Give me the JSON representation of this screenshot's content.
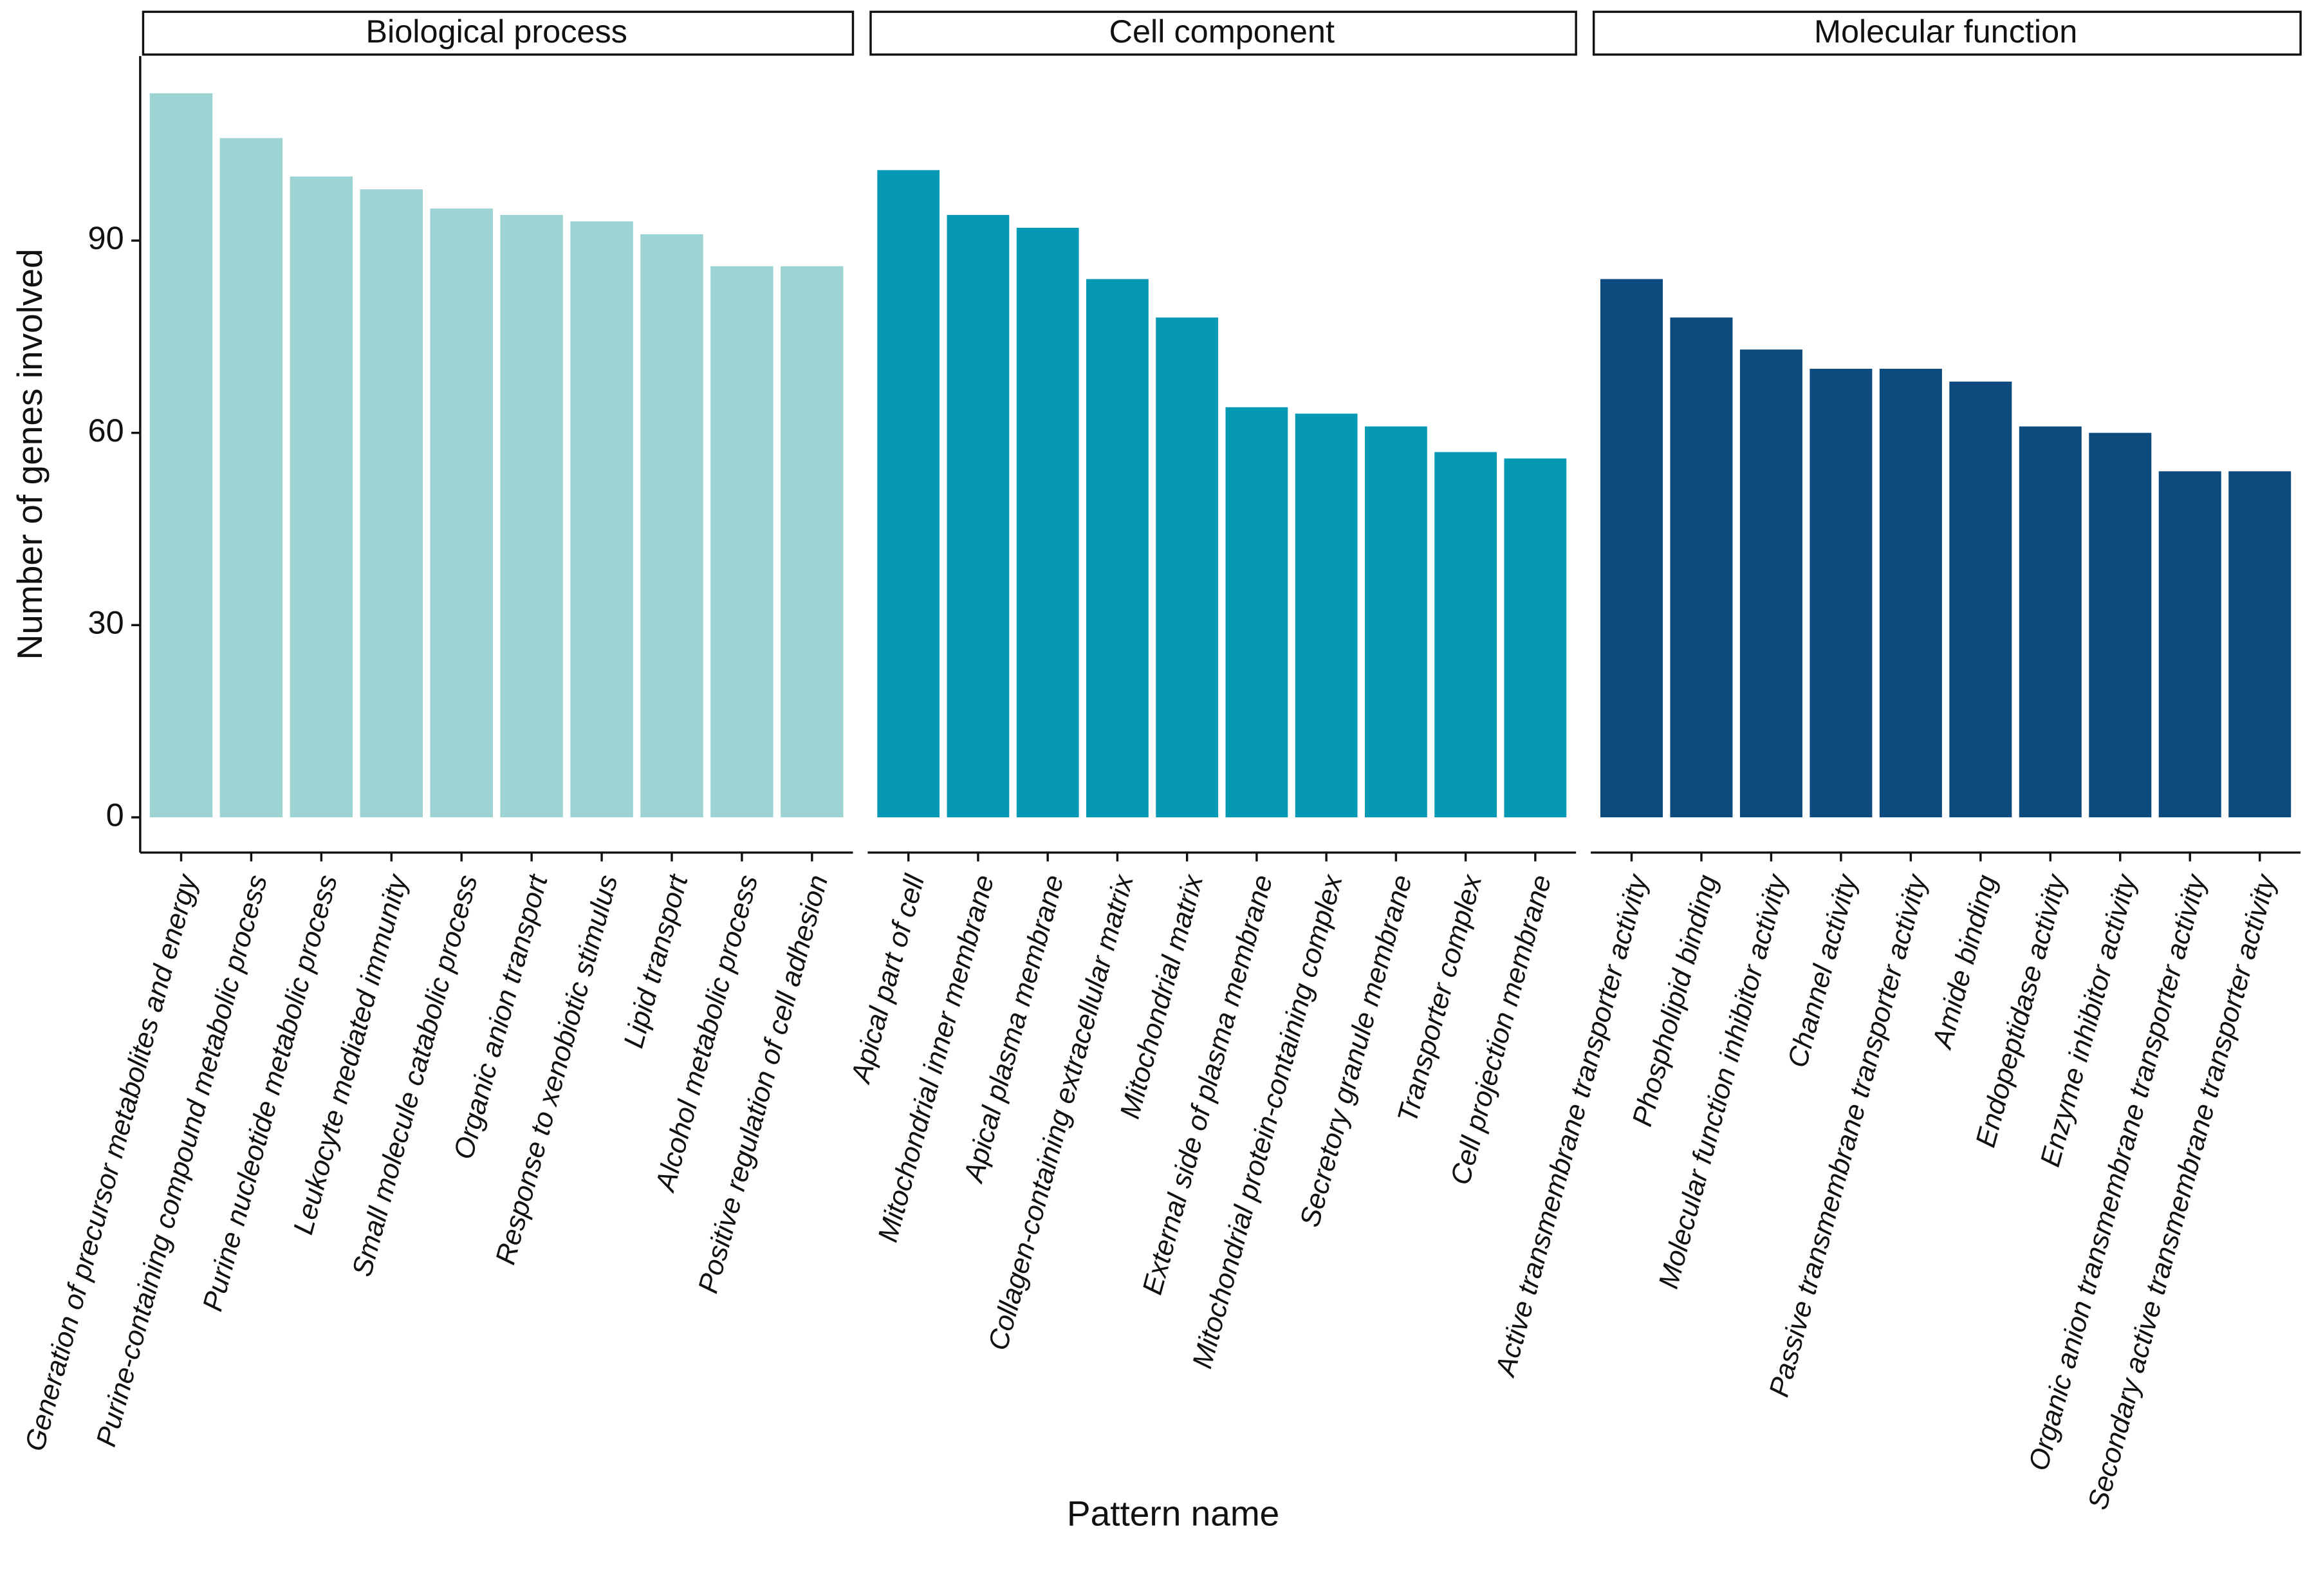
{
  "chart_data": {
    "type": "bar",
    "y_label": "Number of genes involved",
    "x_label": "Pattern name",
    "ylim": [
      -5.5,
      118.8
    ],
    "yticks": [
      0,
      30,
      60,
      90
    ],
    "panels": [
      {
        "title": "Biological process",
        "color": "#9dd3d3",
        "categories": [
          "Generation of precursor metabolites and energy",
          "Purine-containing compound metabolic process",
          "Purine nucleotide metabolic process",
          "Leukocyte mediated immunity",
          "Small molecule catabolic process",
          "Organic anion transport",
          "Response to xenobiotic stimulus",
          "Lipid transport",
          "Alcohol metabolic process",
          "Positive regulation of cell adhesion"
        ],
        "values": [
          113,
          106,
          100,
          98,
          95,
          94,
          93,
          91,
          86,
          86
        ]
      },
      {
        "title": "Cell component",
        "color": "#0599b3",
        "categories": [
          "Apical part of cell",
          "Mitochondrial inner membrane",
          "Apical plasma membrane",
          "Collagen-containing extracellular matrix",
          "Mitochondrial matrix",
          "External side of plasma membrane",
          "Mitochondrial protein-containing complex",
          "Secretory granule membrane",
          "Transporter complex",
          "Cell projection membrane"
        ],
        "values": [
          101,
          94,
          92,
          84,
          78,
          64,
          63,
          61,
          57,
          56
        ]
      },
      {
        "title": "Molecular function",
        "color": "#0d4a7e",
        "categories": [
          "Active transmembrane transporter activity",
          "Phospholipid binding",
          "Molecular function inhibitor activity",
          "Channel activity",
          "Passive transmembrane transporter activity",
          "Amide binding",
          "Endopeptidase activity",
          "Enzyme inhibitor activity",
          "Organic anion transmembrane transporter activity",
          "Secondary active transmembrane transporter activity"
        ],
        "values": [
          84,
          78,
          73,
          70,
          70,
          68,
          61,
          60,
          54,
          54
        ]
      }
    ]
  }
}
